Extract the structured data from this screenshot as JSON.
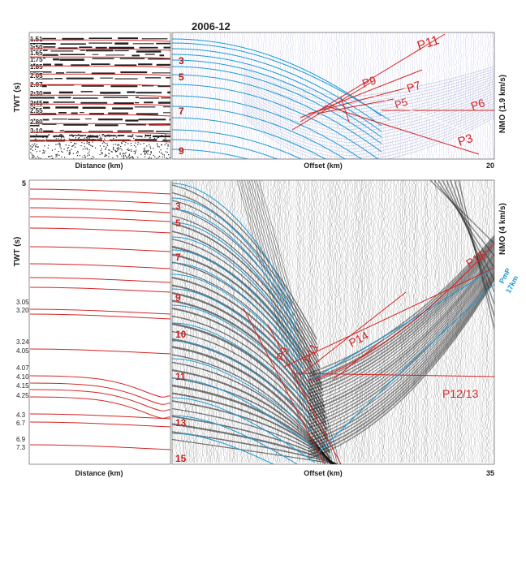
{
  "title": "2006-12",
  "top": {
    "ylabel": "TWT (s)",
    "left_xlabel": "Distance (km)",
    "right_xlabel": "Offset (km)",
    "right_ylabel": "NMO (1.9 km/s)",
    "xmax_label": "20",
    "depth_ticks": [
      "1.51",
      "1.50",
      "1.65",
      "1.75",
      "1.85",
      "2.05",
      "2.07",
      "2.30",
      "2.45",
      "2.55",
      "2.80",
      "3.10"
    ],
    "layer_numbers": [
      "3",
      "5",
      "7",
      "9"
    ],
    "phase_labels": [
      "P11",
      "P9",
      "P7",
      "P5",
      "P6",
      "P3"
    ]
  },
  "bottom": {
    "ylabel": "TWT (s)",
    "left_xlabel": "Distance (km)",
    "right_xlabel": "Offset (km)",
    "right_ylabel": "NMO (4 km/s)",
    "ymax_label": "5",
    "xmax_label": "35",
    "depth_ticks": [
      "3.05",
      "3.20",
      "3.24",
      "4.05",
      "4.07",
      "4.10",
      "4.15",
      "4.25",
      "4.3",
      "6.7",
      "6.9",
      "7.3"
    ],
    "layer_numbers": [
      "3",
      "5",
      "7",
      "9",
      "10",
      "11",
      "13",
      "15"
    ],
    "phase_labels": [
      "P9",
      "P11",
      "P14",
      "P15",
      "P12/13"
    ],
    "blue_label_1": "PmP",
    "blue_label_2": "17km"
  },
  "colors": {
    "red": "#d42424",
    "blue": "#1f9ad6",
    "dark": "#222222"
  }
}
